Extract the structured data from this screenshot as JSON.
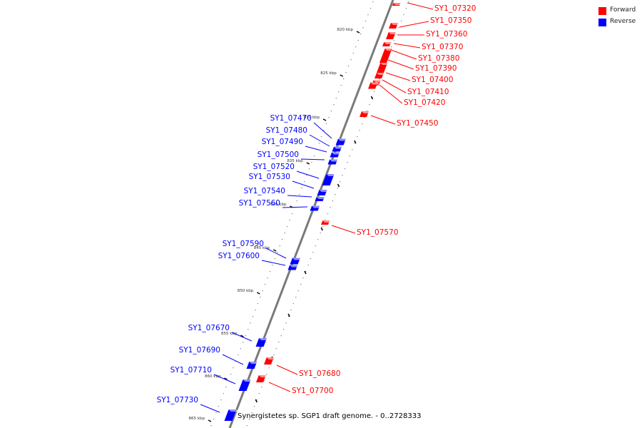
{
  "colors": {
    "forward": "#ff0000",
    "reverse": "#0000ff",
    "axis": "#7a7a7a",
    "tick": "#000000",
    "dots": "#777777"
  },
  "legend": {
    "items": [
      {
        "label": "Forward",
        "color": "#ff0000"
      },
      {
        "label": "Reverse",
        "color": "#0000ff"
      }
    ]
  },
  "caption": "Synergistetes sp. SGP1 draft genome. - 0..2728333",
  "scale": {
    "ticks": [
      "820 kbp",
      "825 kbp",
      "830 kbp",
      "835 kbp",
      "840 kbp",
      "845 kbp",
      "850 kbp",
      "855 kbp",
      "860 kbp",
      "865 kbp"
    ]
  },
  "genes": {
    "forward": [
      "SY1_07320",
      "SY1_07350",
      "SY1_07360",
      "SY1_07370",
      "SY1_07380",
      "SY1_07390",
      "SY1_07400",
      "SY1_07410",
      "SY1_07420",
      "SY1_07450",
      "SY1_07570",
      "SY1_07680",
      "SY1_07700"
    ],
    "reverse": [
      "SY1_07470",
      "SY1_07480",
      "SY1_07490",
      "SY1_07500",
      "SY1_07520",
      "SY1_07530",
      "SY1_07540",
      "SY1_07560",
      "SY1_07590",
      "SY1_07600",
      "SY1_07670",
      "SY1_07690",
      "SY1_07710",
      "SY1_07730"
    ]
  }
}
